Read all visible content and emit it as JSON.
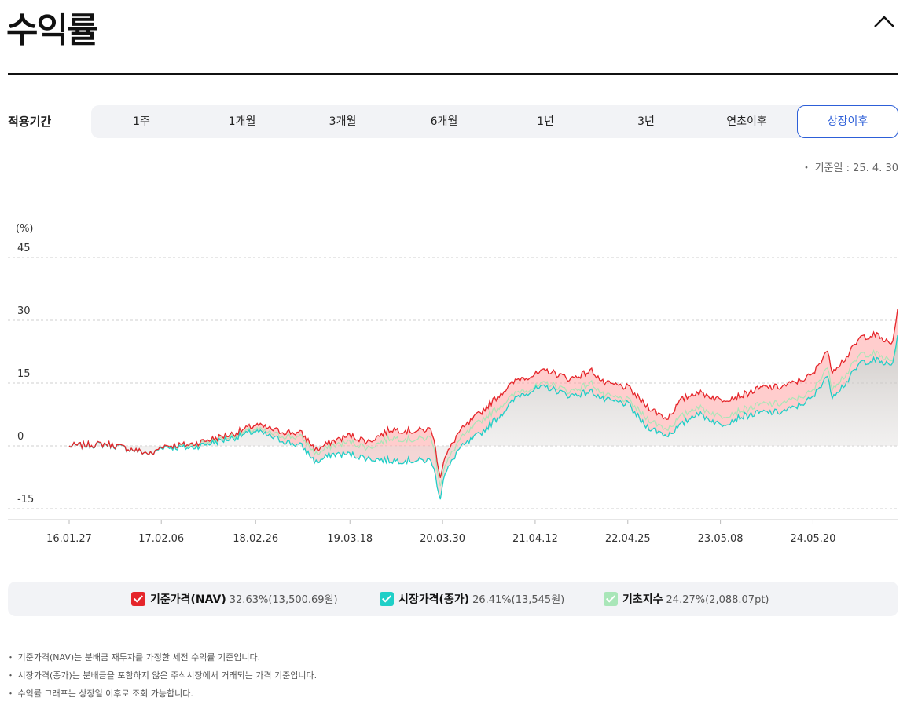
{
  "header": {
    "title": "수익률"
  },
  "period": {
    "label": "적용기간",
    "tabs": [
      "1주",
      "1개월",
      "3개월",
      "6개월",
      "1년",
      "3년",
      "연초이후",
      "상장이후"
    ],
    "active_index": 7
  },
  "base_date": "・ 기준일 : 25. 4. 30",
  "legend": [
    {
      "name": "기준가격(NAV)",
      "value": "32.63%(13,500.69원)",
      "color": "#e5252a"
    },
    {
      "name": "시장가격(종가)",
      "value": "26.41%(13,545원)",
      "color": "#1fcfc7"
    },
    {
      "name": "기초지수",
      "value": "24.27%(2,088.07pt)",
      "color": "#a9e6b8"
    }
  ],
  "notes": [
    "・ 기준가격(NAV)는 분배금 재투자를 가정한 세전 수익률 기준입니다.",
    "・ 시장가격(종가)는 분배금을 포함하지 않은 주식시장에서 거래되는 가격 기준입니다.",
    "・ 수익률 그래프는 상장일 이후로 조회 가능합니다."
  ],
  "chart_data": {
    "type": "area",
    "yunit": "(%)",
    "ylim": [
      -15,
      45
    ],
    "yticks": [
      45,
      30,
      15,
      0,
      -15
    ],
    "xlim": [
      "2016-01-27",
      "2025-04-30"
    ],
    "xticks": [
      "16.01.27",
      "17.02.06",
      "18.02.26",
      "19.03.18",
      "20.03.30",
      "21.04.12",
      "22.04.25",
      "23.05.08",
      "24.05.20"
    ],
    "xtick_dates": [
      "2016-01-27",
      "2017-02-06",
      "2018-02-26",
      "2019-03-18",
      "2020-03-30",
      "2021-04-12",
      "2022-04-25",
      "2023-05-08",
      "2024-05-20"
    ],
    "grid": true,
    "legend_position": "bottom",
    "series": [
      {
        "name": "기준가격(NAV)",
        "color": "#e5252a",
        "x": [
          "2016-01-27",
          "2016-07-01",
          "2017-01-01",
          "2017-02-06",
          "2017-06-01",
          "2017-12-01",
          "2018-02-26",
          "2018-06-01",
          "2018-09-01",
          "2018-11-01",
          "2019-01-01",
          "2019-03-18",
          "2019-06-01",
          "2019-09-01",
          "2019-12-01",
          "2020-02-15",
          "2020-03-23",
          "2020-03-30",
          "2020-06-01",
          "2020-09-01",
          "2020-12-01",
          "2021-02-01",
          "2021-04-12",
          "2021-06-01",
          "2021-09-01",
          "2021-12-01",
          "2022-01-15",
          "2022-04-25",
          "2022-07-01",
          "2022-10-01",
          "2022-12-01",
          "2023-02-01",
          "2023-05-08",
          "2023-08-01",
          "2023-10-30",
          "2024-01-01",
          "2024-03-01",
          "2024-05-20",
          "2024-07-15",
          "2024-08-05",
          "2024-10-01",
          "2024-12-01",
          "2025-02-01",
          "2025-04-08",
          "2025-04-30"
        ],
        "values": [
          0,
          0.5,
          -2,
          0,
          0.3,
          3,
          5,
          3.5,
          3,
          -1,
          1,
          2.5,
          1,
          4,
          3.5,
          4,
          -8,
          -4,
          3,
          8,
          13,
          16,
          17,
          18,
          16,
          18,
          15,
          14,
          10,
          6.5,
          11,
          13,
          11,
          12,
          14,
          14,
          15,
          17,
          23,
          18,
          21,
          26,
          26.5,
          24,
          32.63
        ]
      },
      {
        "name": "시장가격(종가)",
        "color": "#1fcfc7",
        "x": [
          "2016-01-27",
          "2016-07-01",
          "2017-01-01",
          "2017-02-06",
          "2017-06-01",
          "2017-12-01",
          "2018-02-26",
          "2018-06-01",
          "2018-09-01",
          "2018-11-01",
          "2019-01-01",
          "2019-03-18",
          "2019-06-01",
          "2019-09-01",
          "2019-12-01",
          "2020-02-15",
          "2020-03-23",
          "2020-03-30",
          "2020-06-01",
          "2020-09-01",
          "2020-12-01",
          "2021-02-01",
          "2021-04-12",
          "2021-06-01",
          "2021-09-01",
          "2021-12-01",
          "2022-01-15",
          "2022-04-25",
          "2022-07-01",
          "2022-10-01",
          "2022-12-01",
          "2023-02-01",
          "2023-05-08",
          "2023-08-01",
          "2023-10-30",
          "2024-01-01",
          "2024-03-01",
          "2024-05-20",
          "2024-07-15",
          "2024-08-05",
          "2024-10-01",
          "2024-12-01",
          "2025-02-01",
          "2025-04-08",
          "2025-04-30"
        ],
        "values": [
          0,
          0.4,
          -2,
          -0.2,
          -0.5,
          2,
          3.5,
          1.5,
          0,
          -4,
          -2,
          -2,
          -3,
          -3.5,
          -3.5,
          -3.5,
          -13,
          -8,
          -1,
          3,
          8,
          12,
          13.5,
          14,
          12,
          13,
          11,
          10,
          5,
          2.5,
          5,
          8,
          5,
          7,
          8,
          8,
          9,
          11.5,
          17,
          12,
          15,
          20,
          20.5,
          19,
          26.41
        ]
      },
      {
        "name": "기초지수",
        "color": "#a9e6b8",
        "x": [
          "2016-01-27",
          "2016-07-01",
          "2017-01-01",
          "2017-02-06",
          "2017-06-01",
          "2017-12-01",
          "2018-02-26",
          "2018-06-01",
          "2018-09-01",
          "2018-11-01",
          "2019-01-01",
          "2019-03-18",
          "2019-06-01",
          "2019-09-01",
          "2019-12-01",
          "2020-02-15",
          "2020-03-23",
          "2020-03-30",
          "2020-06-01",
          "2020-09-01",
          "2020-12-01",
          "2021-02-01",
          "2021-04-12",
          "2021-06-01",
          "2021-09-01",
          "2021-12-01",
          "2022-01-15",
          "2022-04-25",
          "2022-07-01",
          "2022-10-01",
          "2022-12-01",
          "2023-02-01",
          "2023-05-08",
          "2023-08-01",
          "2023-10-30",
          "2024-01-01",
          "2024-03-01",
          "2024-05-20",
          "2024-07-15",
          "2024-08-05",
          "2024-10-01",
          "2024-12-01",
          "2025-02-01",
          "2025-04-08",
          "2025-04-30"
        ],
        "values": [
          0,
          0.4,
          -2,
          -0.1,
          0,
          2.5,
          4,
          2.5,
          2,
          -2,
          0,
          1,
          -0.5,
          2,
          1.5,
          2,
          -10,
          -6,
          1,
          6,
          10,
          13,
          14,
          15,
          13,
          15,
          12,
          11,
          7,
          4,
          7,
          9.5,
          7,
          8.5,
          10,
          10,
          11,
          13,
          19,
          14,
          17,
          22,
          22,
          20,
          24.27
        ]
      }
    ]
  }
}
